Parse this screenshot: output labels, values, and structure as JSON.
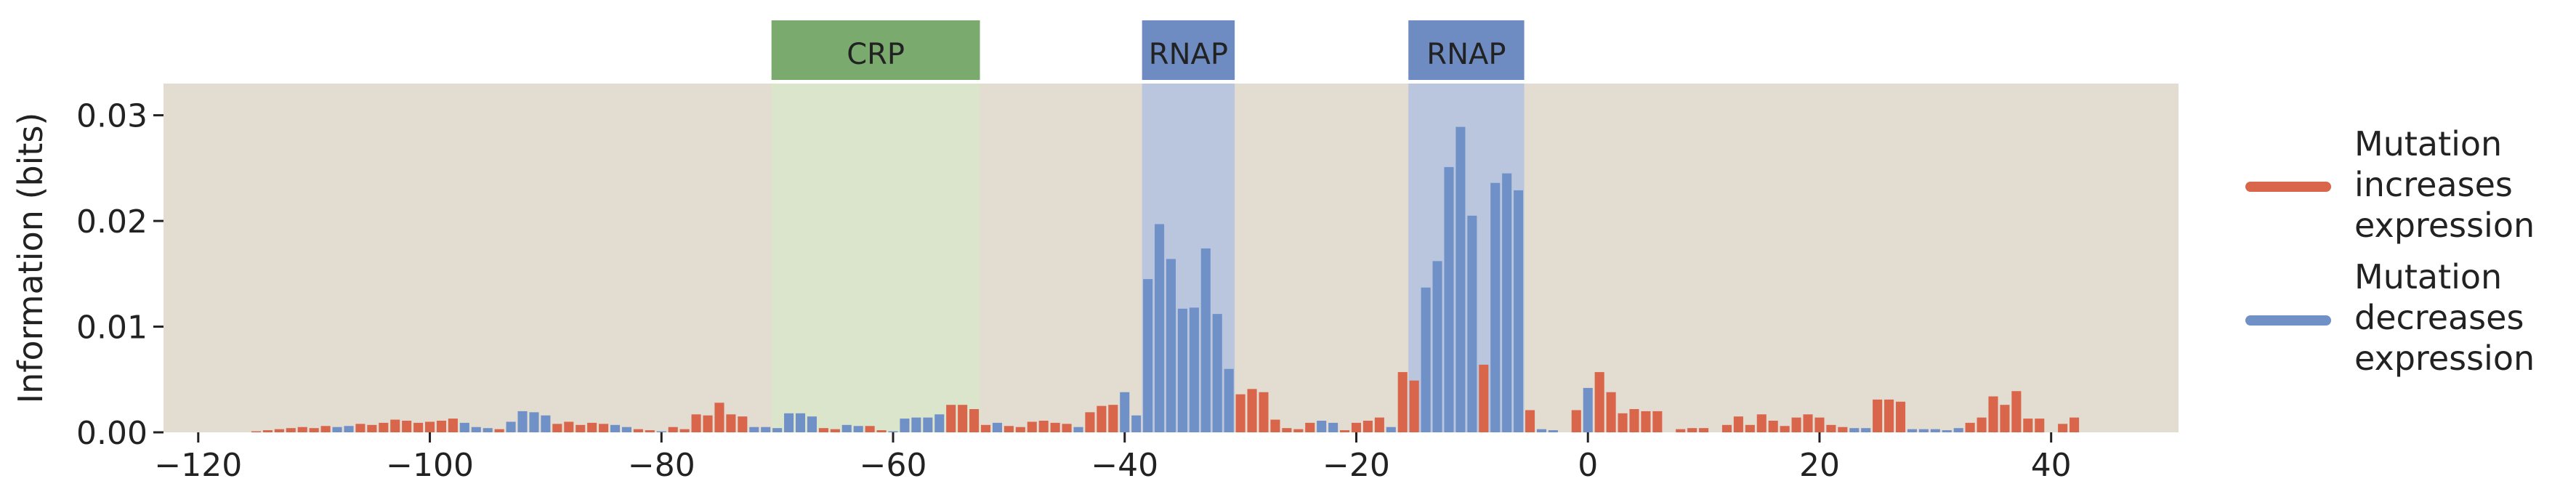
{
  "colors": {
    "increase": "#d9654a",
    "decrease": "#7090c8",
    "plot_bg": "#e3dcd1",
    "crp_region": "#dbe5cc",
    "crp_box": "#7aaa6e",
    "rnap_region": "#b9c6de",
    "rnap_box": "#6f8cc2"
  },
  "legend": {
    "items": [
      {
        "lines": [
          "Mutation",
          "increases",
          "expression"
        ],
        "color": "#d9654a"
      },
      {
        "lines": [
          "Mutation",
          "decreases",
          "expression"
        ],
        "color": "#7090c8"
      }
    ]
  },
  "chart_data": {
    "type": "bar",
    "title": "",
    "xlabel": "",
    "ylabel": "Information (bits)",
    "xlim": [
      -123,
      51
    ],
    "ylim": [
      0,
      0.033
    ],
    "xticks": [
      -120,
      -100,
      -80,
      -60,
      -40,
      -20,
      0,
      20,
      40
    ],
    "xtick_labels": [
      "−120",
      "−100",
      "−80",
      "−60",
      "−40",
      "−20",
      "0",
      "20",
      "40"
    ],
    "yticks": [
      0,
      0.01,
      0.02,
      0.03
    ],
    "ytick_labels": [
      "0.00",
      "0.01",
      "0.02",
      "0.03"
    ],
    "regions": [
      {
        "label": "CRP",
        "start": -70.5,
        "end": -52.5,
        "type": "crp"
      },
      {
        "label": "RNAP",
        "start": -38.5,
        "end": -30.5,
        "type": "rnap"
      },
      {
        "label": "RNAP",
        "start": -15.5,
        "end": -5.5,
        "type": "rnap"
      }
    ],
    "bars": [
      {
        "x": -115,
        "v": 0.0001,
        "s": "inc"
      },
      {
        "x": -114,
        "v": 0.0002,
        "s": "inc"
      },
      {
        "x": -113,
        "v": 0.0003,
        "s": "inc"
      },
      {
        "x": -112,
        "v": 0.0004,
        "s": "inc"
      },
      {
        "x": -111,
        "v": 0.0005,
        "s": "inc"
      },
      {
        "x": -110,
        "v": 0.0004,
        "s": "inc"
      },
      {
        "x": -109,
        "v": 0.0006,
        "s": "inc"
      },
      {
        "x": -108,
        "v": 0.0005,
        "s": "dec"
      },
      {
        "x": -107,
        "v": 0.0006,
        "s": "dec"
      },
      {
        "x": -106,
        "v": 0.0008,
        "s": "inc"
      },
      {
        "x": -105,
        "v": 0.0007,
        "s": "inc"
      },
      {
        "x": -104,
        "v": 0.0009,
        "s": "inc"
      },
      {
        "x": -103,
        "v": 0.0012,
        "s": "inc"
      },
      {
        "x": -102,
        "v": 0.0011,
        "s": "inc"
      },
      {
        "x": -101,
        "v": 0.0009,
        "s": "inc"
      },
      {
        "x": -100,
        "v": 0.001,
        "s": "inc"
      },
      {
        "x": -99,
        "v": 0.0011,
        "s": "inc"
      },
      {
        "x": -98,
        "v": 0.0013,
        "s": "inc"
      },
      {
        "x": -97,
        "v": 0.0009,
        "s": "dec"
      },
      {
        "x": -96,
        "v": 0.0005,
        "s": "dec"
      },
      {
        "x": -95,
        "v": 0.0004,
        "s": "dec"
      },
      {
        "x": -94,
        "v": 0.0003,
        "s": "inc"
      },
      {
        "x": -93,
        "v": 0.001,
        "s": "dec"
      },
      {
        "x": -92,
        "v": 0.002,
        "s": "dec"
      },
      {
        "x": -91,
        "v": 0.0019,
        "s": "dec"
      },
      {
        "x": -90,
        "v": 0.0016,
        "s": "dec"
      },
      {
        "x": -89,
        "v": 0.0008,
        "s": "inc"
      },
      {
        "x": -88,
        "v": 0.001,
        "s": "inc"
      },
      {
        "x": -87,
        "v": 0.0007,
        "s": "inc"
      },
      {
        "x": -86,
        "v": 0.0009,
        "s": "inc"
      },
      {
        "x": -85,
        "v": 0.0008,
        "s": "inc"
      },
      {
        "x": -84,
        "v": 0.0007,
        "s": "dec"
      },
      {
        "x": -83,
        "v": 0.0005,
        "s": "dec"
      },
      {
        "x": -82,
        "v": 0.0003,
        "s": "inc"
      },
      {
        "x": -81,
        "v": 0.0002,
        "s": "inc"
      },
      {
        "x": -80,
        "v": 0.0001,
        "s": "dec"
      },
      {
        "x": -79,
        "v": 0.0005,
        "s": "inc"
      },
      {
        "x": -78,
        "v": 0.0003,
        "s": "inc"
      },
      {
        "x": -77,
        "v": 0.0017,
        "s": "inc"
      },
      {
        "x": -76,
        "v": 0.0016,
        "s": "inc"
      },
      {
        "x": -75,
        "v": 0.0028,
        "s": "inc"
      },
      {
        "x": -74,
        "v": 0.0017,
        "s": "inc"
      },
      {
        "x": -73,
        "v": 0.0015,
        "s": "inc"
      },
      {
        "x": -72,
        "v": 0.0005,
        "s": "dec"
      },
      {
        "x": -71,
        "v": 0.0005,
        "s": "dec"
      },
      {
        "x": -70,
        "v": 0.0004,
        "s": "dec"
      },
      {
        "x": -69,
        "v": 0.0018,
        "s": "dec"
      },
      {
        "x": -68,
        "v": 0.0018,
        "s": "dec"
      },
      {
        "x": -67,
        "v": 0.0015,
        "s": "dec"
      },
      {
        "x": -66,
        "v": 0.0004,
        "s": "inc"
      },
      {
        "x": -65,
        "v": 0.0003,
        "s": "inc"
      },
      {
        "x": -64,
        "v": 0.0007,
        "s": "dec"
      },
      {
        "x": -63,
        "v": 0.0006,
        "s": "dec"
      },
      {
        "x": -62,
        "v": 0.0006,
        "s": "inc"
      },
      {
        "x": -61,
        "v": 0.0002,
        "s": "inc"
      },
      {
        "x": -60,
        "v": 0.0001,
        "s": "dec"
      },
      {
        "x": -59,
        "v": 0.0013,
        "s": "dec"
      },
      {
        "x": -58,
        "v": 0.0014,
        "s": "dec"
      },
      {
        "x": -57,
        "v": 0.0014,
        "s": "dec"
      },
      {
        "x": -56,
        "v": 0.0017,
        "s": "dec"
      },
      {
        "x": -55,
        "v": 0.0026,
        "s": "inc"
      },
      {
        "x": -54,
        "v": 0.0026,
        "s": "inc"
      },
      {
        "x": -53,
        "v": 0.0022,
        "s": "inc"
      },
      {
        "x": -52,
        "v": 0.0007,
        "s": "inc"
      },
      {
        "x": -51,
        "v": 0.0009,
        "s": "dec"
      },
      {
        "x": -50,
        "v": 0.0006,
        "s": "inc"
      },
      {
        "x": -49,
        "v": 0.0005,
        "s": "inc"
      },
      {
        "x": -48,
        "v": 0.001,
        "s": "inc"
      },
      {
        "x": -47,
        "v": 0.0011,
        "s": "inc"
      },
      {
        "x": -46,
        "v": 0.0009,
        "s": "inc"
      },
      {
        "x": -45,
        "v": 0.0008,
        "s": "inc"
      },
      {
        "x": -44,
        "v": 0.0005,
        "s": "dec"
      },
      {
        "x": -43,
        "v": 0.0019,
        "s": "inc"
      },
      {
        "x": -42,
        "v": 0.0025,
        "s": "inc"
      },
      {
        "x": -41,
        "v": 0.0026,
        "s": "inc"
      },
      {
        "x": -40,
        "v": 0.0038,
        "s": "dec"
      },
      {
        "x": -39,
        "v": 0.0016,
        "s": "dec"
      },
      {
        "x": -38,
        "v": 0.0145,
        "s": "dec"
      },
      {
        "x": -37,
        "v": 0.0197,
        "s": "dec"
      },
      {
        "x": -36,
        "v": 0.0164,
        "s": "dec"
      },
      {
        "x": -35,
        "v": 0.0117,
        "s": "dec"
      },
      {
        "x": -34,
        "v": 0.0118,
        "s": "dec"
      },
      {
        "x": -33,
        "v": 0.0174,
        "s": "dec"
      },
      {
        "x": -32,
        "v": 0.0112,
        "s": "dec"
      },
      {
        "x": -31,
        "v": 0.006,
        "s": "dec"
      },
      {
        "x": -30,
        "v": 0.0036,
        "s": "inc"
      },
      {
        "x": -29,
        "v": 0.0041,
        "s": "inc"
      },
      {
        "x": -28,
        "v": 0.0038,
        "s": "inc"
      },
      {
        "x": -27,
        "v": 0.0012,
        "s": "inc"
      },
      {
        "x": -26,
        "v": 0.0004,
        "s": "inc"
      },
      {
        "x": -25,
        "v": 0.0003,
        "s": "inc"
      },
      {
        "x": -24,
        "v": 0.0009,
        "s": "inc"
      },
      {
        "x": -23,
        "v": 0.0011,
        "s": "dec"
      },
      {
        "x": -22,
        "v": 0.0009,
        "s": "dec"
      },
      {
        "x": -21,
        "v": 0.0002,
        "s": "inc"
      },
      {
        "x": -20,
        "v": 0.0009,
        "s": "inc"
      },
      {
        "x": -19,
        "v": 0.0011,
        "s": "inc"
      },
      {
        "x": -18,
        "v": 0.0014,
        "s": "inc"
      },
      {
        "x": -17,
        "v": 0.0005,
        "s": "dec"
      },
      {
        "x": -16,
        "v": 0.0057,
        "s": "inc"
      },
      {
        "x": -15,
        "v": 0.0049,
        "s": "inc"
      },
      {
        "x": -14,
        "v": 0.0137,
        "s": "dec"
      },
      {
        "x": -13,
        "v": 0.0162,
        "s": "dec"
      },
      {
        "x": -12,
        "v": 0.0251,
        "s": "dec"
      },
      {
        "x": -11,
        "v": 0.0289,
        "s": "dec"
      },
      {
        "x": -10,
        "v": 0.0205,
        "s": "dec"
      },
      {
        "x": -9,
        "v": 0.0064,
        "s": "inc"
      },
      {
        "x": -8,
        "v": 0.0236,
        "s": "dec"
      },
      {
        "x": -7,
        "v": 0.0245,
        "s": "dec"
      },
      {
        "x": -6,
        "v": 0.0229,
        "s": "dec"
      },
      {
        "x": -5,
        "v": 0.0021,
        "s": "inc"
      },
      {
        "x": -4,
        "v": 0.0003,
        "s": "dec"
      },
      {
        "x": -3,
        "v": 0.0002,
        "s": "dec"
      },
      {
        "x": -1,
        "v": 0.0021,
        "s": "inc"
      },
      {
        "x": 0,
        "v": 0.0042,
        "s": "dec"
      },
      {
        "x": 1,
        "v": 0.0057,
        "s": "inc"
      },
      {
        "x": 2,
        "v": 0.0038,
        "s": "inc"
      },
      {
        "x": 3,
        "v": 0.0018,
        "s": "inc"
      },
      {
        "x": 4,
        "v": 0.0022,
        "s": "inc"
      },
      {
        "x": 5,
        "v": 0.002,
        "s": "inc"
      },
      {
        "x": 6,
        "v": 0.002,
        "s": "inc"
      },
      {
        "x": 8,
        "v": 0.0003,
        "s": "inc"
      },
      {
        "x": 9,
        "v": 0.0004,
        "s": "inc"
      },
      {
        "x": 10,
        "v": 0.0004,
        "s": "inc"
      },
      {
        "x": 12,
        "v": 0.0007,
        "s": "inc"
      },
      {
        "x": 13,
        "v": 0.0015,
        "s": "inc"
      },
      {
        "x": 14,
        "v": 0.0007,
        "s": "inc"
      },
      {
        "x": 15,
        "v": 0.0017,
        "s": "inc"
      },
      {
        "x": 16,
        "v": 0.0011,
        "s": "inc"
      },
      {
        "x": 17,
        "v": 0.0006,
        "s": "inc"
      },
      {
        "x": 18,
        "v": 0.0014,
        "s": "inc"
      },
      {
        "x": 19,
        "v": 0.0017,
        "s": "inc"
      },
      {
        "x": 20,
        "v": 0.0014,
        "s": "inc"
      },
      {
        "x": 21,
        "v": 0.0007,
        "s": "inc"
      },
      {
        "x": 22,
        "v": 0.0005,
        "s": "inc"
      },
      {
        "x": 23,
        "v": 0.0004,
        "s": "dec"
      },
      {
        "x": 24,
        "v": 0.0004,
        "s": "dec"
      },
      {
        "x": 25,
        "v": 0.0031,
        "s": "inc"
      },
      {
        "x": 26,
        "v": 0.0031,
        "s": "inc"
      },
      {
        "x": 27,
        "v": 0.0029,
        "s": "inc"
      },
      {
        "x": 28,
        "v": 0.0003,
        "s": "dec"
      },
      {
        "x": 29,
        "v": 0.0003,
        "s": "dec"
      },
      {
        "x": 30,
        "v": 0.0003,
        "s": "dec"
      },
      {
        "x": 31,
        "v": 0.0002,
        "s": "dec"
      },
      {
        "x": 32,
        "v": 0.0004,
        "s": "dec"
      },
      {
        "x": 33,
        "v": 0.0009,
        "s": "inc"
      },
      {
        "x": 34,
        "v": 0.0014,
        "s": "inc"
      },
      {
        "x": 35,
        "v": 0.0034,
        "s": "inc"
      },
      {
        "x": 36,
        "v": 0.0026,
        "s": "inc"
      },
      {
        "x": 37,
        "v": 0.0039,
        "s": "inc"
      },
      {
        "x": 38,
        "v": 0.0013,
        "s": "inc"
      },
      {
        "x": 39,
        "v": 0.0013,
        "s": "inc"
      },
      {
        "x": 41,
        "v": 0.0008,
        "s": "inc"
      },
      {
        "x": 42,
        "v": 0.0014,
        "s": "inc"
      }
    ]
  }
}
